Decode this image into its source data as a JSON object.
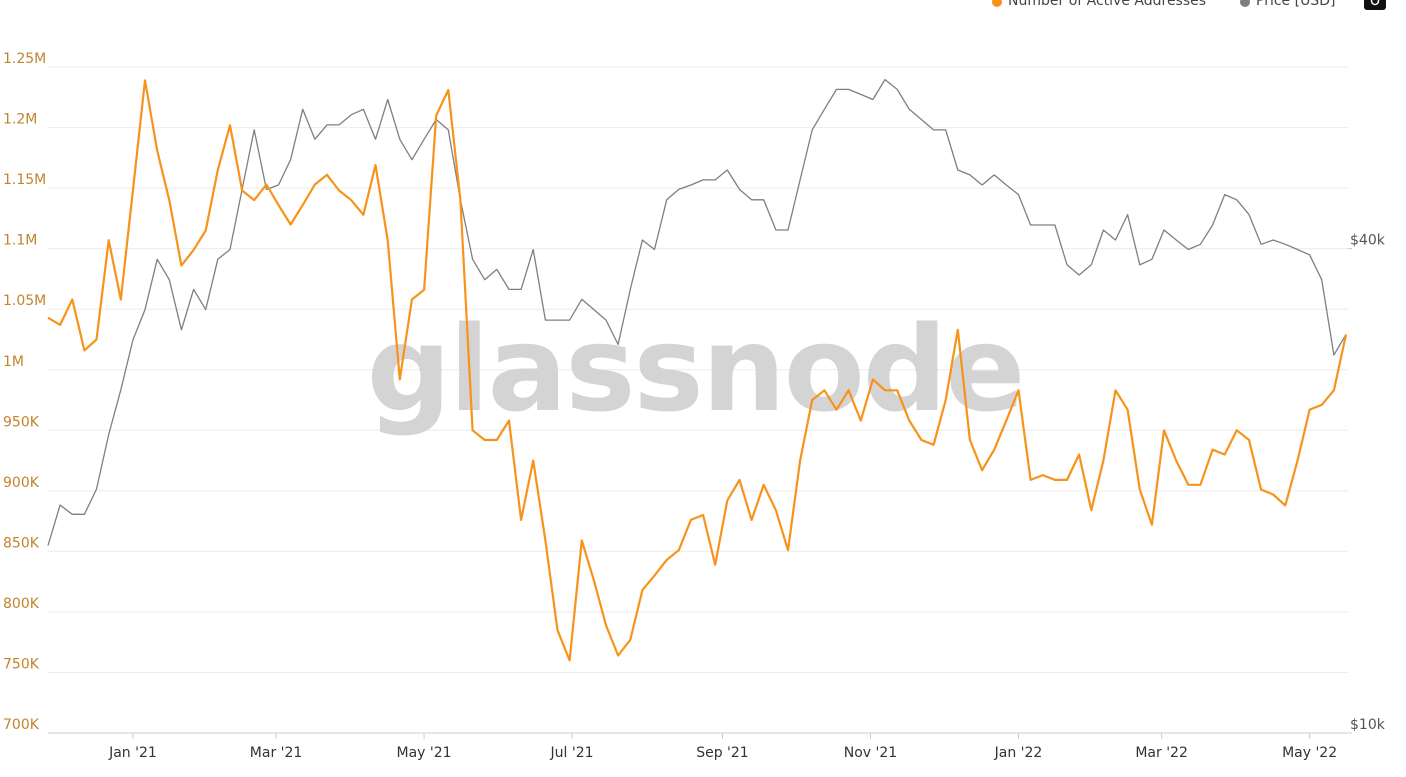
{
  "chart_data": {
    "type": "line",
    "watermark": "glassnode",
    "x": [
      "2020-11-27",
      "2020-12-02",
      "2020-12-07",
      "2020-12-12",
      "2020-12-17",
      "2020-12-22",
      "2020-12-27",
      "2021-01-01",
      "2021-01-06",
      "2021-01-11",
      "2021-01-16",
      "2021-01-21",
      "2021-01-26",
      "2021-01-31",
      "2021-02-05",
      "2021-02-10",
      "2021-02-15",
      "2021-02-20",
      "2021-02-25",
      "2021-03-02",
      "2021-03-07",
      "2021-03-12",
      "2021-03-17",
      "2021-03-22",
      "2021-03-27",
      "2021-04-01",
      "2021-04-06",
      "2021-04-11",
      "2021-04-16",
      "2021-04-21",
      "2021-04-26",
      "2021-05-01",
      "2021-05-06",
      "2021-05-11",
      "2021-05-16",
      "2021-05-21",
      "2021-05-26",
      "2021-05-31",
      "2021-06-05",
      "2021-06-10",
      "2021-06-15",
      "2021-06-20",
      "2021-06-25",
      "2021-06-30",
      "2021-07-05",
      "2021-07-10",
      "2021-07-15",
      "2021-07-20",
      "2021-07-25",
      "2021-07-30",
      "2021-08-04",
      "2021-08-09",
      "2021-08-14",
      "2021-08-19",
      "2021-08-24",
      "2021-08-29",
      "2021-09-03",
      "2021-09-08",
      "2021-09-13",
      "2021-09-18",
      "2021-09-23",
      "2021-09-28",
      "2021-10-03",
      "2021-10-08",
      "2021-10-13",
      "2021-10-18",
      "2021-10-23",
      "2021-10-28",
      "2021-11-02",
      "2021-11-07",
      "2021-11-12",
      "2021-11-17",
      "2021-11-22",
      "2021-11-27",
      "2021-12-02",
      "2021-12-07",
      "2021-12-12",
      "2021-12-17",
      "2021-12-22",
      "2021-12-27",
      "2022-01-01",
      "2022-01-06",
      "2022-01-11",
      "2022-01-16",
      "2022-01-21",
      "2022-01-26",
      "2022-01-31",
      "2022-02-05",
      "2022-02-10",
      "2022-02-15",
      "2022-02-20",
      "2022-02-25",
      "2022-03-02",
      "2022-03-07",
      "2022-03-12",
      "2022-03-17",
      "2022-03-22",
      "2022-03-27",
      "2022-04-01",
      "2022-04-06",
      "2022-04-11",
      "2022-04-16",
      "2022-04-21",
      "2022-04-26",
      "2022-05-01",
      "2022-05-06",
      "2022-05-11",
      "2022-05-16"
    ],
    "series": [
      {
        "name": "Number of Active Addresses",
        "color": "#f7931a",
        "axis": "y",
        "values": [
          1043000,
          1037000,
          1058000,
          1016000,
          1025000,
          1107000,
          1058000,
          1148000,
          1239000,
          1181000,
          1140000,
          1086000,
          1099000,
          1115000,
          1165000,
          1202000,
          1148000,
          1140000,
          1153000,
          1136000,
          1120000,
          1136000,
          1153000,
          1161000,
          1148000,
          1140000,
          1128000,
          1169000,
          1107000,
          992000,
          1058000,
          1066000,
          1210000,
          1231000,
          1140000,
          950000,
          942000,
          942000,
          958000,
          876000,
          925000,
          859000,
          785000,
          760000,
          859000,
          826000,
          789000,
          764000,
          777000,
          818000,
          830000,
          843000,
          851000,
          876000,
          880000,
          839000,
          892000,
          909000,
          876000,
          905000,
          884000,
          851000,
          925000,
          975000,
          983000,
          967000,
          983000,
          958000,
          992000,
          983000,
          983000,
          958000,
          942000,
          938000,
          975000,
          1033000,
          942000,
          917000,
          934000,
          958000,
          983000,
          909000,
          913000,
          909000,
          909000,
          930000,
          884000,
          925000,
          983000,
          967000,
          901000,
          872000,
          950000,
          925000,
          905000,
          905000,
          934000,
          930000,
          950000,
          942000,
          901000,
          897000,
          888000,
          925000,
          967000,
          971000,
          983000,
          1029000
        ]
      },
      {
        "name": "Price [USD]",
        "color": "#7f7f7f",
        "axis": "y2",
        "values": [
          17100,
          19200,
          18700,
          18700,
          20100,
          23500,
          26700,
          30800,
          33600,
          38800,
          36600,
          31700,
          35600,
          33600,
          38800,
          39900,
          47400,
          56200,
          47400,
          48000,
          51600,
          59600,
          54700,
          57000,
          57000,
          58700,
          59600,
          54700,
          61300,
          54700,
          51600,
          54700,
          57900,
          56200,
          46000,
          38800,
          36600,
          37700,
          35600,
          35600,
          39900,
          32600,
          32600,
          32600,
          34600,
          33600,
          32600,
          30400,
          35600,
          41000,
          39900,
          46000,
          47400,
          48000,
          48700,
          48700,
          50100,
          47400,
          46000,
          46000,
          42200,
          42200,
          48700,
          56200,
          59600,
          63100,
          63100,
          62200,
          61300,
          64900,
          63100,
          59600,
          57900,
          56200,
          56200,
          50100,
          49400,
          48000,
          49400,
          48000,
          46700,
          42800,
          42800,
          42800,
          38200,
          37100,
          38200,
          42200,
          41000,
          44100,
          38200,
          38800,
          42200,
          41000,
          39900,
          40500,
          42800,
          46700,
          46000,
          44100,
          40500,
          41000,
          40500,
          39900,
          39300,
          36600,
          29500,
          31300
        ]
      }
    ],
    "xlim": [
      "2020-11-27",
      "2022-05-16"
    ],
    "xticks": [
      {
        "value": "2021-01-01",
        "label": "Jan '21"
      },
      {
        "value": "2021-03-01",
        "label": "Mar '21"
      },
      {
        "value": "2021-05-01",
        "label": "May '21"
      },
      {
        "value": "2021-07-01",
        "label": "Jul '21"
      },
      {
        "value": "2021-09-01",
        "label": "Sep '21"
      },
      {
        "value": "2021-11-01",
        "label": "Nov '21"
      },
      {
        "value": "2022-01-01",
        "label": "Jan '22"
      },
      {
        "value": "2022-03-01",
        "label": "Mar '22"
      },
      {
        "value": "2022-05-01",
        "label": "May '22"
      }
    ],
    "ylim": [
      700000,
      1300000
    ],
    "yticks": [
      {
        "value": 700000,
        "label": "700K"
      },
      {
        "value": 750000,
        "label": "750K"
      },
      {
        "value": 800000,
        "label": "800K"
      },
      {
        "value": 850000,
        "label": "850K"
      },
      {
        "value": 900000,
        "label": "900K"
      },
      {
        "value": 950000,
        "label": "950K"
      },
      {
        "value": 1000000,
        "label": "1M"
      },
      {
        "value": 1050000,
        "label": "1.05M"
      },
      {
        "value": 1100000,
        "label": "1.1M"
      },
      {
        "value": 1150000,
        "label": "1.15M"
      },
      {
        "value": 1200000,
        "label": "1.2M"
      },
      {
        "value": 1250000,
        "label": "1.25M"
      }
    ],
    "y2lim": [
      10000,
      80000
    ],
    "y2scale": "log",
    "y2ticks": [
      {
        "value": 10000,
        "label": "$10k"
      },
      {
        "value": 40000,
        "label": "$40k"
      }
    ],
    "grid": true,
    "legend": "top-right"
  }
}
